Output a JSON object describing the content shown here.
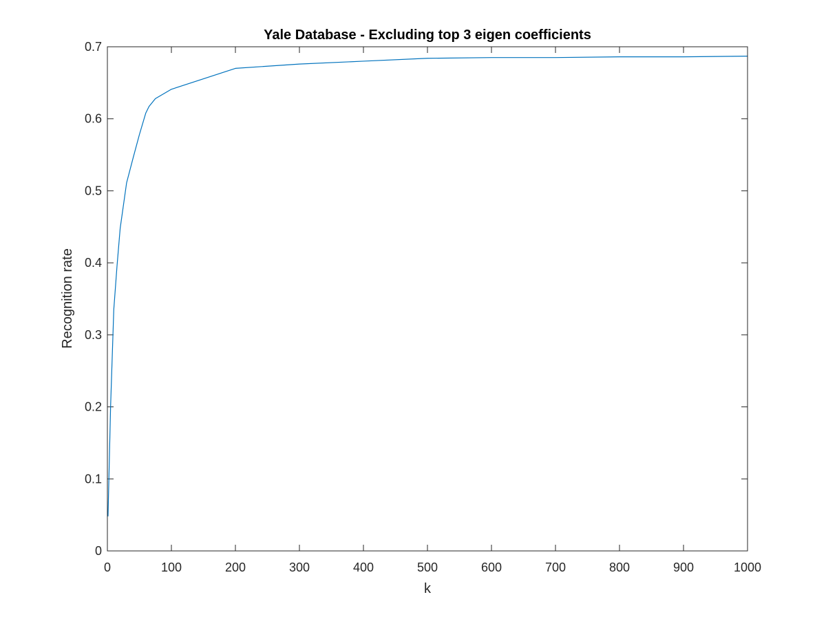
{
  "chart_data": {
    "type": "line",
    "title": "Yale Database - Excluding top 3 eigen coefficients",
    "xlabel": "k",
    "ylabel": "Recognition rate",
    "xlim": [
      0,
      1000
    ],
    "ylim": [
      0,
      0.7
    ],
    "grid": false,
    "legend": "none",
    "x_ticks": [
      0,
      100,
      200,
      300,
      400,
      500,
      600,
      700,
      800,
      900,
      1000
    ],
    "x_tick_labels": [
      "0",
      "100",
      "200",
      "300",
      "400",
      "500",
      "600",
      "700",
      "800",
      "900",
      "1000"
    ],
    "y_ticks": [
      0,
      0.1,
      0.2,
      0.3,
      0.4,
      0.5,
      0.6,
      0.7
    ],
    "y_tick_labels": [
      "0",
      "0.1",
      "0.2",
      "0.3",
      "0.4",
      "0.5",
      "0.6",
      "0.7"
    ],
    "series": [
      {
        "color": "#0072BD",
        "x": [
          1,
          5,
          10,
          15,
          20,
          30,
          40,
          50,
          60,
          65,
          75,
          100,
          200,
          300,
          400,
          500,
          600,
          700,
          800,
          900,
          1000
        ],
        "y": [
          0.048,
          0.2,
          0.335,
          0.395,
          0.448,
          0.511,
          0.545,
          0.578,
          0.608,
          0.617,
          0.628,
          0.641,
          0.67,
          0.676,
          0.68,
          0.684,
          0.685,
          0.685,
          0.686,
          0.686,
          0.687
        ]
      }
    ]
  }
}
